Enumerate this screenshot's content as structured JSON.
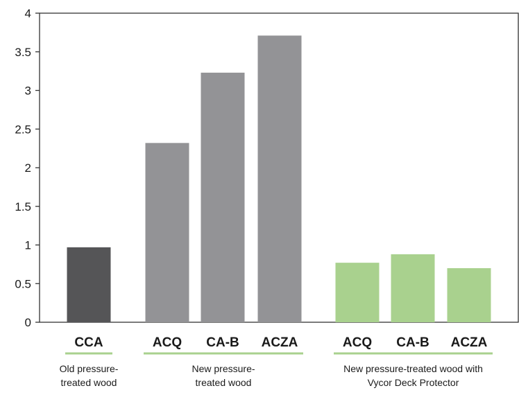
{
  "chart_data": {
    "type": "bar",
    "categories": [
      "CCA",
      "ACQ",
      "CA-B",
      "ACZA",
      "ACQ",
      "CA-B",
      "ACZA"
    ],
    "values": [
      0.97,
      2.32,
      3.23,
      3.71,
      0.77,
      0.88,
      0.7
    ],
    "ylim": [
      0,
      4
    ],
    "yticks": [
      "0",
      "0.5",
      "1",
      "1.5",
      "2",
      "2.5",
      "3",
      "3.5",
      "4"
    ],
    "grid": false,
    "groups": [
      {
        "lines": [
          "Old pressure-",
          "treated wood"
        ],
        "color": "#555557",
        "bars": [
          0
        ]
      },
      {
        "lines": [
          "New pressure-",
          "treated wood"
        ],
        "color": "#939396",
        "bars": [
          1,
          2,
          3
        ]
      },
      {
        "lines": [
          "New pressure-treated wood with",
          "Vycor Deck Protector"
        ],
        "color": "#a9d18e",
        "bars": [
          4,
          5,
          6
        ]
      }
    ],
    "underline_color": "#a9d18e"
  }
}
